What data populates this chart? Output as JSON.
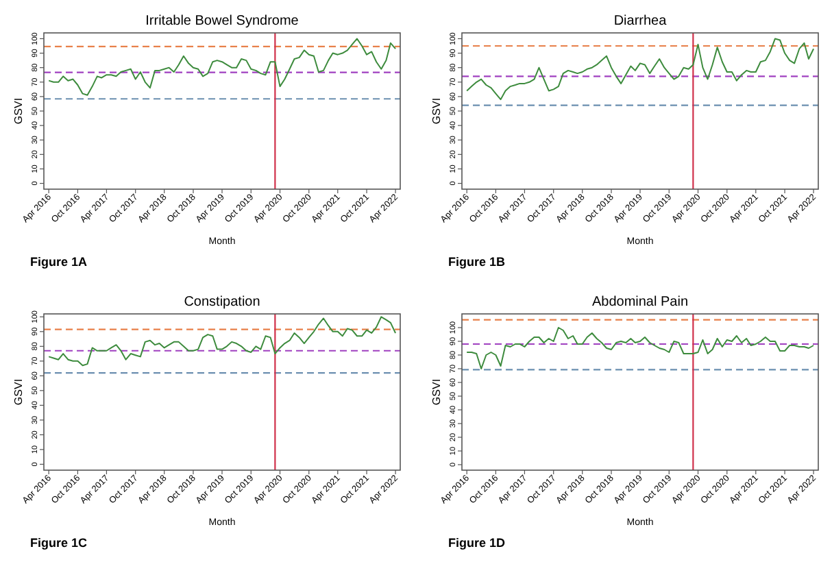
{
  "chart_data": [
    {
      "type": "line",
      "title": "Irritable Bowel Syndrome",
      "xlabel": "Month",
      "ylabel": "GSVI",
      "annotations": [
        "Figure 1A"
      ],
      "x": [
        "2016-04",
        "2016-05",
        "2016-06",
        "2016-07",
        "2016-08",
        "2016-09",
        "2016-10",
        "2016-11",
        "2016-12",
        "2017-01",
        "2017-02",
        "2017-03",
        "2017-04",
        "2017-05",
        "2017-06",
        "2017-07",
        "2017-08",
        "2017-09",
        "2017-10",
        "2017-11",
        "2017-12",
        "2018-01",
        "2018-02",
        "2018-03",
        "2018-04",
        "2018-05",
        "2018-06",
        "2018-07",
        "2018-08",
        "2018-09",
        "2018-10",
        "2018-11",
        "2018-12",
        "2019-01",
        "2019-02",
        "2019-03",
        "2019-04",
        "2019-05",
        "2019-06",
        "2019-07",
        "2019-08",
        "2019-09",
        "2019-10",
        "2019-11",
        "2019-12",
        "2020-01",
        "2020-02",
        "2020-03",
        "2020-04",
        "2020-05",
        "2020-06",
        "2020-07",
        "2020-08",
        "2020-09",
        "2020-10",
        "2020-11",
        "2020-12",
        "2021-01",
        "2021-02",
        "2021-03",
        "2021-04",
        "2021-05",
        "2021-06",
        "2021-07",
        "2021-08",
        "2021-09",
        "2021-10",
        "2021-11",
        "2021-12",
        "2022-01",
        "2022-02",
        "2022-03",
        "2022-04"
      ],
      "series": [
        {
          "color": "#3d8b3d",
          "values": [
            71,
            70,
            70,
            74,
            71,
            72,
            68,
            62,
            61,
            67,
            74,
            73,
            75,
            75,
            74,
            77,
            78,
            79,
            72,
            77,
            70,
            66,
            78,
            78,
            79,
            80,
            77,
            82,
            88,
            83,
            80,
            79,
            74,
            76,
            84,
            85,
            84,
            82,
            80,
            80,
            86,
            85,
            79,
            78,
            76,
            75,
            84,
            84,
            67,
            72,
            79,
            86,
            87,
            92,
            89,
            88,
            77,
            78,
            85,
            90,
            89,
            90,
            92,
            96,
            100,
            95,
            89,
            91,
            84,
            79,
            85,
            97,
            93
          ]
        }
      ],
      "xlim": [
        "2016-03",
        "2022-05"
      ],
      "ylim": [
        -4,
        104
      ],
      "xticks": [
        {
          "value": "2016-04",
          "label": "Apr 2016"
        },
        {
          "value": "2016-10",
          "label": "Oct 2016"
        },
        {
          "value": "2017-04",
          "label": "Apr 2017"
        },
        {
          "value": "2017-10",
          "label": "Oct 2017"
        },
        {
          "value": "2018-04",
          "label": "Apr 2018"
        },
        {
          "value": "2018-10",
          "label": "Oct 2018"
        },
        {
          "value": "2019-04",
          "label": "Apr 2019"
        },
        {
          "value": "2019-10",
          "label": "Oct 2019"
        },
        {
          "value": "2020-04",
          "label": "Apr 2020"
        },
        {
          "value": "2020-10",
          "label": "Oct 2020"
        },
        {
          "value": "2021-04",
          "label": "Apr 2021"
        },
        {
          "value": "2021-10",
          "label": "Oct 2021"
        },
        {
          "value": "2022-04",
          "label": "Apr 2022"
        }
      ],
      "yticks": [
        0,
        10,
        20,
        30,
        40,
        50,
        60,
        70,
        80,
        90,
        100
      ],
      "ref_lines": [
        {
          "axis": "y",
          "value": 94.6,
          "color": "#e8804a",
          "line_style": "dashed"
        },
        {
          "axis": "y",
          "value": 76.7,
          "color": "#a040c0",
          "line_style": "dashed"
        },
        {
          "axis": "y",
          "value": 58.4,
          "color": "#6b8fb0",
          "line_style": "dashed"
        },
        {
          "axis": "x",
          "value": "2020-03",
          "color": "#d0304a",
          "line_style": "solid"
        }
      ],
      "grid": false,
      "line_style": "solid",
      "marker": "none"
    },
    {
      "type": "line",
      "title": "Diarrhea",
      "xlabel": "Month",
      "ylabel": "GSVI",
      "annotations": [
        "Figure 1B"
      ],
      "x": [
        "2016-04",
        "2016-05",
        "2016-06",
        "2016-07",
        "2016-08",
        "2016-09",
        "2016-10",
        "2016-11",
        "2016-12",
        "2017-01",
        "2017-02",
        "2017-03",
        "2017-04",
        "2017-05",
        "2017-06",
        "2017-07",
        "2017-08",
        "2017-09",
        "2017-10",
        "2017-11",
        "2017-12",
        "2018-01",
        "2018-02",
        "2018-03",
        "2018-04",
        "2018-05",
        "2018-06",
        "2018-07",
        "2018-08",
        "2018-09",
        "2018-10",
        "2018-11",
        "2018-12",
        "2019-01",
        "2019-02",
        "2019-03",
        "2019-04",
        "2019-05",
        "2019-06",
        "2019-07",
        "2019-08",
        "2019-09",
        "2019-10",
        "2019-11",
        "2019-12",
        "2020-01",
        "2020-02",
        "2020-03",
        "2020-04",
        "2020-05",
        "2020-06",
        "2020-07",
        "2020-08",
        "2020-09",
        "2020-10",
        "2020-11",
        "2020-12",
        "2021-01",
        "2021-02",
        "2021-03",
        "2021-04",
        "2021-05",
        "2021-06",
        "2021-07",
        "2021-08",
        "2021-09",
        "2021-10",
        "2021-11",
        "2021-12",
        "2022-01",
        "2022-02",
        "2022-03",
        "2022-04"
      ],
      "series": [
        {
          "color": "#3d8b3d",
          "values": [
            64,
            67,
            70,
            72,
            68,
            66,
            62,
            58,
            64,
            67,
            68,
            69,
            69,
            70,
            72,
            80,
            72,
            64,
            65,
            67,
            76,
            78,
            77,
            76,
            77,
            79,
            80,
            82,
            85,
            88,
            80,
            74,
            69,
            75,
            81,
            78,
            83,
            82,
            76,
            81,
            86,
            80,
            76,
            72,
            74,
            80,
            79,
            82,
            96,
            80,
            72,
            82,
            94,
            84,
            77,
            77,
            71,
            75,
            78,
            77,
            77,
            84,
            85,
            91,
            100,
            99,
            90,
            85,
            83,
            93,
            97,
            86,
            93
          ]
        }
      ],
      "xlim": [
        "2016-03",
        "2022-05"
      ],
      "ylim": [
        -4,
        104
      ],
      "xticks": [
        {
          "value": "2016-04",
          "label": "Apr 2016"
        },
        {
          "value": "2016-10",
          "label": "Oct 2016"
        },
        {
          "value": "2017-04",
          "label": "Apr 2017"
        },
        {
          "value": "2017-10",
          "label": "Oct 2017"
        },
        {
          "value": "2018-04",
          "label": "Apr 2018"
        },
        {
          "value": "2018-10",
          "label": "Oct 2018"
        },
        {
          "value": "2019-04",
          "label": "Apr 2019"
        },
        {
          "value": "2019-10",
          "label": "Oct 2019"
        },
        {
          "value": "2020-04",
          "label": "Apr 2020"
        },
        {
          "value": "2020-10",
          "label": "Oct 2020"
        },
        {
          "value": "2021-04",
          "label": "Apr 2021"
        },
        {
          "value": "2021-10",
          "label": "Oct 2021"
        },
        {
          "value": "2022-04",
          "label": "Apr 2022"
        }
      ],
      "yticks": [
        0,
        10,
        20,
        30,
        40,
        50,
        60,
        70,
        80,
        90,
        100
      ],
      "ref_lines": [
        {
          "axis": "y",
          "value": 95,
          "color": "#e8804a",
          "line_style": "dashed"
        },
        {
          "axis": "y",
          "value": 74,
          "color": "#a040c0",
          "line_style": "dashed"
        },
        {
          "axis": "y",
          "value": 54,
          "color": "#6b8fb0",
          "line_style": "dashed"
        },
        {
          "axis": "x",
          "value": "2020-03",
          "color": "#d0304a",
          "line_style": "solid"
        }
      ],
      "grid": false,
      "line_style": "solid",
      "marker": "none"
    },
    {
      "type": "line",
      "title": "Constipation",
      "xlabel": "Month",
      "ylabel": "GSVI",
      "annotations": [
        "Figure 1C"
      ],
      "x": [
        "2016-04",
        "2016-05",
        "2016-06",
        "2016-07",
        "2016-08",
        "2016-09",
        "2016-10",
        "2016-11",
        "2016-12",
        "2017-01",
        "2017-02",
        "2017-03",
        "2017-04",
        "2017-05",
        "2017-06",
        "2017-07",
        "2017-08",
        "2017-09",
        "2017-10",
        "2017-11",
        "2017-12",
        "2018-01",
        "2018-02",
        "2018-03",
        "2018-04",
        "2018-05",
        "2018-06",
        "2018-07",
        "2018-08",
        "2018-09",
        "2018-10",
        "2018-11",
        "2018-12",
        "2019-01",
        "2019-02",
        "2019-03",
        "2019-04",
        "2019-05",
        "2019-06",
        "2019-07",
        "2019-08",
        "2019-09",
        "2019-10",
        "2019-11",
        "2019-12",
        "2020-01",
        "2020-02",
        "2020-03",
        "2020-04",
        "2020-05",
        "2020-06",
        "2020-07",
        "2020-08",
        "2020-09",
        "2020-10",
        "2020-11",
        "2020-12",
        "2021-01",
        "2021-02",
        "2021-03",
        "2021-04",
        "2021-05",
        "2021-06",
        "2021-07",
        "2021-08",
        "2021-09",
        "2021-10",
        "2021-11",
        "2021-12",
        "2022-01",
        "2022-02",
        "2022-03",
        "2022-04"
      ],
      "series": [
        {
          "color": "#3d8b3d",
          "values": [
            73,
            72,
            71,
            75,
            71,
            70,
            70,
            67,
            68,
            79,
            77,
            77,
            77,
            79,
            81,
            77,
            71,
            75,
            74,
            73,
            83,
            84,
            81,
            82,
            79,
            81,
            83,
            83,
            80,
            77,
            77,
            78,
            86,
            88,
            87,
            78,
            78,
            80,
            83,
            82,
            80,
            77,
            76,
            80,
            78,
            87,
            86,
            75,
            79,
            82,
            84,
            89,
            86,
            82,
            86,
            90,
            95,
            99,
            94,
            90,
            90,
            87,
            92,
            91,
            87,
            87,
            91,
            89,
            93,
            100,
            98,
            96,
            89
          ]
        }
      ],
      "xlim": [
        "2016-03",
        "2022-05"
      ],
      "ylim": [
        -4,
        102
      ],
      "xticks": [
        {
          "value": "2016-04",
          "label": "Apr 2016"
        },
        {
          "value": "2016-10",
          "label": "Oct 2016"
        },
        {
          "value": "2017-04",
          "label": "Apr 2017"
        },
        {
          "value": "2017-10",
          "label": "Oct 2017"
        },
        {
          "value": "2018-04",
          "label": "Apr 2018"
        },
        {
          "value": "2018-10",
          "label": "Oct 2018"
        },
        {
          "value": "2019-04",
          "label": "Apr 2019"
        },
        {
          "value": "2019-10",
          "label": "Oct 2019"
        },
        {
          "value": "2020-04",
          "label": "Apr 2020"
        },
        {
          "value": "2020-10",
          "label": "Oct 2020"
        },
        {
          "value": "2021-04",
          "label": "Apr 2021"
        },
        {
          "value": "2021-10",
          "label": "Oct 2021"
        },
        {
          "value": "2022-04",
          "label": "Apr 2022"
        }
      ],
      "yticks": [
        0,
        10,
        20,
        30,
        40,
        50,
        60,
        70,
        80,
        90,
        100
      ],
      "ref_lines": [
        {
          "axis": "y",
          "value": 91.5,
          "color": "#e8804a",
          "line_style": "dashed"
        },
        {
          "axis": "y",
          "value": 77,
          "color": "#a040c0",
          "line_style": "dashed"
        },
        {
          "axis": "y",
          "value": 62,
          "color": "#6b8fb0",
          "line_style": "dashed"
        },
        {
          "axis": "x",
          "value": "2020-03",
          "color": "#d0304a",
          "line_style": "solid"
        }
      ],
      "grid": false,
      "line_style": "solid",
      "marker": "none"
    },
    {
      "type": "line",
      "title": "Abdominal Pain",
      "xlabel": "Month",
      "ylabel": "GSVI",
      "annotations": [
        "Figure 1D"
      ],
      "x": [
        "2016-04",
        "2016-05",
        "2016-06",
        "2016-07",
        "2016-08",
        "2016-09",
        "2016-10",
        "2016-11",
        "2016-12",
        "2017-01",
        "2017-02",
        "2017-03",
        "2017-04",
        "2017-05",
        "2017-06",
        "2017-07",
        "2017-08",
        "2017-09",
        "2017-10",
        "2017-11",
        "2017-12",
        "2018-01",
        "2018-02",
        "2018-03",
        "2018-04",
        "2018-05",
        "2018-06",
        "2018-07",
        "2018-08",
        "2018-09",
        "2018-10",
        "2018-11",
        "2018-12",
        "2019-01",
        "2019-02",
        "2019-03",
        "2019-04",
        "2019-05",
        "2019-06",
        "2019-07",
        "2019-08",
        "2019-09",
        "2019-10",
        "2019-11",
        "2019-12",
        "2020-01",
        "2020-02",
        "2020-03",
        "2020-04",
        "2020-05",
        "2020-06",
        "2020-07",
        "2020-08",
        "2020-09",
        "2020-10",
        "2020-11",
        "2020-12",
        "2021-01",
        "2021-02",
        "2021-03",
        "2021-04",
        "2021-05",
        "2021-06",
        "2021-07",
        "2021-08",
        "2021-09",
        "2021-10",
        "2021-11",
        "2021-12",
        "2022-01",
        "2022-02",
        "2022-03",
        "2022-04"
      ],
      "series": [
        {
          "color": "#3d8b3d",
          "values": [
            82,
            82,
            81,
            70,
            80,
            82,
            80,
            72,
            87,
            86,
            88,
            88,
            86,
            90,
            93,
            93,
            89,
            92,
            90,
            100,
            98,
            92,
            94,
            88,
            88,
            93,
            96,
            92,
            89,
            85,
            84,
            89,
            90,
            89,
            92,
            89,
            90,
            93,
            89,
            87,
            85,
            84,
            82,
            90,
            89,
            81,
            81,
            81,
            82,
            91,
            81,
            84,
            92,
            86,
            91,
            90,
            94,
            89,
            92,
            87,
            88,
            90,
            93,
            90,
            90,
            83,
            83,
            87,
            87,
            86,
            86,
            85,
            87
          ]
        }
      ],
      "xlim": [
        "2016-03",
        "2022-05"
      ],
      "ylim": [
        -4,
        110
      ],
      "xticks": [
        {
          "value": "2016-04",
          "label": "Apr 2016"
        },
        {
          "value": "2016-10",
          "label": "Oct 2016"
        },
        {
          "value": "2017-04",
          "label": "Apr 2017"
        },
        {
          "value": "2017-10",
          "label": "Oct 2017"
        },
        {
          "value": "2018-04",
          "label": "Apr 2018"
        },
        {
          "value": "2018-10",
          "label": "Oct 2018"
        },
        {
          "value": "2019-04",
          "label": "Apr 2019"
        },
        {
          "value": "2019-10",
          "label": "Oct 2019"
        },
        {
          "value": "2020-04",
          "label": "Apr 2020"
        },
        {
          "value": "2020-10",
          "label": "Oct 2020"
        },
        {
          "value": "2021-04",
          "label": "Apr 2021"
        },
        {
          "value": "2021-10",
          "label": "Oct 2021"
        },
        {
          "value": "2022-04",
          "label": "Apr 2022"
        }
      ],
      "yticks": [
        0,
        10,
        20,
        30,
        40,
        50,
        60,
        70,
        80,
        90,
        100
      ],
      "ref_lines": [
        {
          "axis": "y",
          "value": 105.7,
          "color": "#e8804a",
          "line_style": "dashed"
        },
        {
          "axis": "y",
          "value": 88,
          "color": "#a040c0",
          "line_style": "dashed"
        },
        {
          "axis": "y",
          "value": 69.3,
          "color": "#6b8fb0",
          "line_style": "dashed"
        },
        {
          "axis": "x",
          "value": "2020-03",
          "color": "#d0304a",
          "line_style": "solid"
        }
      ],
      "grid": false,
      "line_style": "solid",
      "marker": "none"
    }
  ]
}
